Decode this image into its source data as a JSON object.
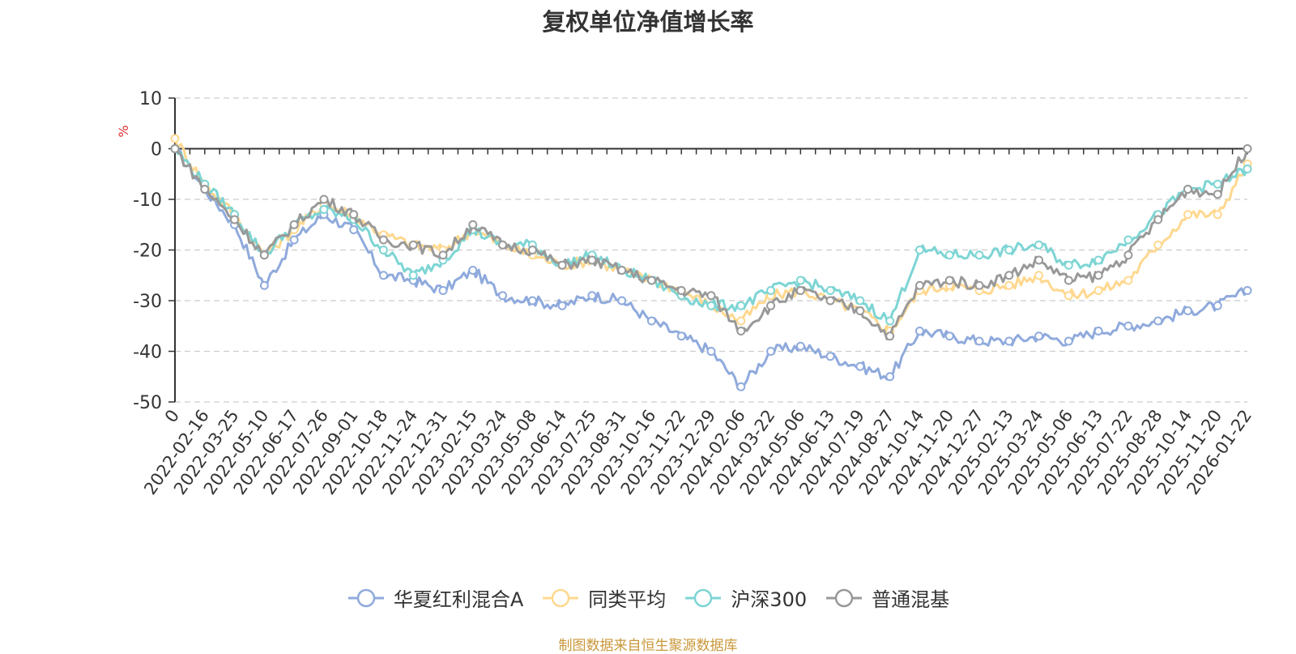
{
  "chart_data": {
    "type": "line",
    "title": "复权单位净值增长率",
    "ylabel": "%",
    "ylim": [
      -50,
      10
    ],
    "yticks": [
      10,
      0,
      -10,
      -20,
      -30,
      -40,
      -50
    ],
    "categories": [
      "0",
      "2022-02-16",
      "2022-03-25",
      "2022-05-10",
      "2022-06-17",
      "2022-07-26",
      "2022-09-01",
      "2022-10-18",
      "2022-11-24",
      "2022-12-31",
      "2023-02-15",
      "2023-03-24",
      "2023-05-08",
      "2023-06-14",
      "2023-07-25",
      "2023-08-31",
      "2023-10-16",
      "2023-11-22",
      "2023-12-29",
      "2024-02-06",
      "2024-03-22",
      "2024-05-06",
      "2024-06-13",
      "2024-07-19",
      "2024-08-27",
      "2024-10-14",
      "2024-11-20",
      "2024-12-27",
      "2025-02-13",
      "2025-03-24",
      "2025-05-06",
      "2025-06-13",
      "2025-07-22",
      "2025-08-28",
      "2025-10-14",
      "2025-11-20",
      "2026-01-22"
    ],
    "series": [
      {
        "name": "华夏红利混合A",
        "color": "#8faadc",
        "values": [
          0,
          -8,
          -15,
          -27,
          -18,
          -13,
          -16,
          -25,
          -26,
          -28,
          -24,
          -29,
          -30,
          -31,
          -29,
          -30,
          -34,
          -37,
          -40,
          -47,
          -40,
          -39,
          -41,
          -43,
          -45,
          -36,
          -37,
          -38,
          -38,
          -37,
          -38,
          -36,
          -35,
          -34,
          -32,
          -31,
          -28
        ]
      },
      {
        "name": "同类平均",
        "color": "#ffd88f",
        "values": [
          2,
          -7,
          -13,
          -21,
          -16,
          -11,
          -13,
          -17,
          -19,
          -20,
          -16,
          -19,
          -21,
          -23,
          -22,
          -24,
          -26,
          -28,
          -31,
          -34,
          -29,
          -28,
          -30,
          -32,
          -36,
          -28,
          -27,
          -28,
          -27,
          -25,
          -29,
          -28,
          -26,
          -19,
          -13,
          -13,
          -3
        ]
      },
      {
        "name": "沪深300",
        "color": "#7dd5d4",
        "values": [
          0,
          -7,
          -13,
          -21,
          -15,
          -12,
          -14,
          -20,
          -25,
          -22,
          -16,
          -19,
          -19,
          -23,
          -21,
          -24,
          -26,
          -29,
          -31,
          -31,
          -28,
          -26,
          -28,
          -30,
          -34,
          -20,
          -21,
          -21,
          -20,
          -19,
          -23,
          -22,
          -18,
          -13,
          -8,
          -7,
          -4
        ]
      },
      {
        "name": "普通混基",
        "color": "#999999",
        "values": [
          0,
          -8,
          -14,
          -21,
          -15,
          -10,
          -13,
          -18,
          -19,
          -21,
          -15,
          -19,
          -20,
          -23,
          -22,
          -24,
          -26,
          -28,
          -29,
          -36,
          -31,
          -28,
          -30,
          -32,
          -37,
          -27,
          -26,
          -27,
          -25,
          -22,
          -26,
          -25,
          -21,
          -14,
          -8,
          -9,
          0
        ]
      }
    ]
  },
  "footer": {
    "source": "制图数据来自恒生聚源数据库"
  }
}
